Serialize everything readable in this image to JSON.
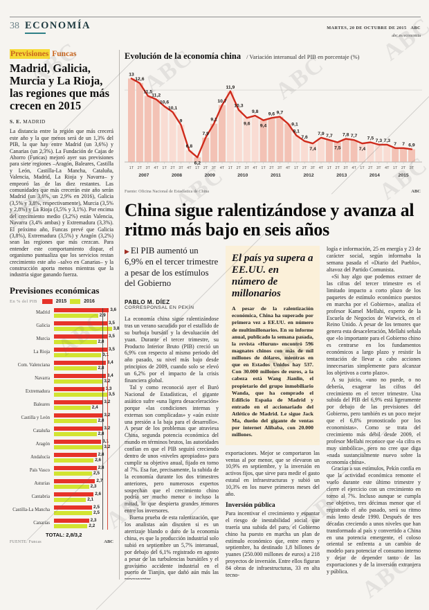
{
  "page": {
    "number": "38",
    "section": "ECONOMÍA",
    "date": "MARTES, 20 DE OCTUBRE DE 2015",
    "brand": "ABC",
    "site": "abc.es/economia",
    "watermark": "ABC"
  },
  "sidebar": {
    "kicker_hl": "Previsiones",
    "kicker_rest": " Funcas",
    "headline": "Madrid, Galicia, Murcia y La Rioja, las regiones que más crecen en 2015",
    "byline_name": "S. E.",
    "byline_city": "MADRID",
    "body": "La distancia entre la región que más crecerá este año y la que menos será de un 1,3% del PIB, la que hay entre Madrid (un 3,6%) y Canarias (un 2,3%). La Fundación de Cajas de Ahorro (Funcas) mejoró ayer sus previsiones para siete regiones –Aragón, Baleares, Castilla y León, Castilla-La Mancha, Cataluña, Valencia, Madrid, La Rioja y Navarra– y empeoró las de las diez restantes. Las comunidades que más crecerán este año serán Madrid (un 3,6%, un 2,9% en 2016), Galicia (3,5% y 3,8%, respectivamente), Murcia (3,5% y 2,8%) y La Rioja (3,5% y 3,1%). Por encima del crecimiento medio (3,2%) están Valencia, Navarra (3,4% ambas) y Extremadura (3,3%). El próximo año, Funcas prevé que Galicia (3,8%), Extremadura (3,5%) y Aragón (3,2%) sean las regiones que más crezcan. Para entender este comportamiento dispar, el organismo puntualiza que los servicios restan crecimiento este año –salvo en Canarias– y la construcción aporta menos mientras que la industria sigue ganando fuerza."
  },
  "main": {
    "headline": "China sigue ralentizándose y avanza al ritmo más bajo en seis años",
    "subhead": "El PIB aumentó un 6,9% en el tercer trimestre a pesar de los estímulos del Gobierno",
    "byline_name": "PABLO M. DÍEZ",
    "byline_role": "CORRESPONSAL EN PEKÍN",
    "col1": [
      "La economía china sigue ralentizándose tras un verano sacudido por el estallido de su burbuja bursátil y la devaluación del yuan. Durante el tercer trimestre, su Producto Interior Bruto (PIB) creció un 6,9% con respecto al mismo periodo del año pasado, su nivel más bajo desde principios de 2009, cuando solo se elevó un 6,2% por el impacto de la crisis financiera global.",
      "Tal y como reconoció ayer el Buró Nacional de Estadísticas, el gigante asiático sufre «una ligera desaceleración» porque «las condiciones internas y externas son complicadas» y «aún existe una presión a la baja para el desarrollo». A pesar de los problemas que atraviesa China, segunda potencia económica del mundo en términos brutos, las autoridades confían en que el PIB seguirá creciendo dentro de unos «niveles apropiados» para cumplir su objetivo anual, fijado en torno al 7%. Esa fue, precisamente, la subida de la economía durante los dos trimestres anteriores, pero numerosos expertos sospechan que el crecimiento chino podría ser mucho menor o incluso la mitad, lo que despierta grandes temores entre los inversores.",
      "Buena prueba de esta ralentización, que los analistas aún discuten si es un aterrizaje blando o duro de la economía china, es que la producción industrial solo subió en septiembre un 5,7% interanual, por debajo del 6,1% registrado en agosto a pesar de las turbulencias bursátiles y el gravísimo accidente industrial en el puerto de Tianjin, que dañó aún más las renqueantes"
    ],
    "box": {
      "title": "El país ya supera a EE.UU. en número de millonarios",
      "body": "A pesar de la ralentización económica, China ha superado por primera vez a EE.UU. en número de multimillonarios. En su informe anual, publicado la semana pasada, la revista «Hurun» encontró 596 magnates chinos con más de mil millones de dólares, mientras en que en Estados Unidos hay 537. Con 30.000 millones de euros, a la cabeza está Wang Jianlin, el propietario del grupo inmobiliario Wanda, que ha comprado el Edificio España de Madrid y entrado en el accionariado del Atlético de Madrid. Le sigue Jack Ma, dueño del gigante de ventas por internet Alibaba, con 20.000 millones."
    },
    "col2_after_box": "exportaciones. Mejor se comportaron las ventas al por menor, que se elevaron un 10,9% en septiembre, y la inversión en activos fijos, que sirve para medir el gasto estatal en infraestructuras y subió un 10,3% en los nueve primeros meses del año.",
    "subheading2": "Inversión pública",
    "col2_p2": "Para incentivar el crecimiento y espantar el riesgo de inestabilidad social que traería una subida del paro, el Gobierno chino ha puesto en marcha un plan de estímulo económico que, entre enero y septiembre, ha destinado 1,8 billones de yuanes (250.000 millones de euros) a 218 proyectos de inversión. Entre ellos figuran 84 obras de infraestructuras, 33 en alta tecno-",
    "col3": [
      "logía e información, 25 en energía y 23 de carácter social, según informaba la semana pasada el «Diario del Pueblo», altavoz del Partido Comunista.",
      "«Si hay algo que podemos extraer de las cifras del tercer trimestre es el limitado impacto a corto plazo de los paquetes de estímulo económico puestos en marcha por el Gobierno», analiza el profesor Kamel Mellahi, experto de la Escuela de Negocios de Warwick, en el Reino Unido. A pesar de los temores que genera esta desaceleración, Mellahi señala que «lo importante para el Gobierno chino es centrarse en los fundamentos económicos a largo plazo y resistir la tentación de llevar a cabo acciones innecesarias simplemente para alcanzar los objetivos a corto plazo».",
      "A su juicio, «uno no puede, o no debería, exagerar las cifras del crecimiento en el tercer trimestre. Una subida del PIB del 6,9% está ligeramente por debajo de las previsiones del Gobierno, pero también es un poco mejor que el 6,8% pronosticado por los economistas». Como se trata del crecimiento más débil desde 2009, el profesor Mellahi reconoce que «la cifra es muy simbólica», pero no cree que diga «nada sustancialmente nuevo sobre la economía china».",
      "Gracias a sus estímulos, Pekín confía en que la actividad económica remonte el vuelo durante este último trimestre y cierre el ejercicio con un crecimiento en torno al 7%. Incluso aunque se cumpla ese objetivo, tres décimas menor que el registrado el año pasado, será su ritmo más lento desde 1990. Después de tres décadas creciendo a unos niveles que han transformado al país y convertido a China en una potencia emergente, el coloso oriental se enfrenta a un cambio de modelo para potenciar el consumo interno y dejar de depender tanto de las exportaciones y de la inversión extranjera y pública."
    ]
  },
  "chart_data": [
    {
      "type": "line",
      "title": "Evolución de la economía china",
      "subtitle": "/ Variación interanual del PIB en porcentaje (%)",
      "x_years": [
        "2007",
        "2008",
        "2009",
        "2010",
        "2011",
        "2012",
        "2013",
        "2014",
        "2015"
      ],
      "quarter_labels": [
        "1T",
        "2T",
        "3T",
        "4T"
      ],
      "values": [
        13,
        12.6,
        11.5,
        11.2,
        10.6,
        10.1,
        9,
        6.8,
        6.2,
        7.9,
        9.1,
        10.7,
        11.9,
        10.3,
        9.6,
        9.8,
        9.4,
        9.6,
        9.7,
        9.1,
        8.1,
        7.6,
        7.4,
        7.9,
        7.7,
        7.5,
        7.8,
        7.7,
        7.4,
        7.5,
        7.3,
        7.3,
        7,
        7,
        6.9
      ],
      "label_dir": [
        "u",
        "u",
        "u",
        "u",
        "u",
        "u",
        "u",
        "u",
        "d",
        "u",
        "u",
        "u",
        "u",
        "u",
        "d",
        "u",
        "d",
        "u",
        "u",
        "r",
        "u",
        "u",
        "d",
        "u",
        "u",
        "d",
        "u",
        "u",
        "d",
        "u",
        "u",
        "u",
        "u",
        "u",
        "u"
      ],
      "ylim": [
        5.8,
        13.2
      ],
      "gridline": 12,
      "line_color": "#cf2a1b",
      "band_colors": [
        "#f3c2b5",
        "#f9dcd3"
      ],
      "source": "Fuente: Oficina Nacional de Estadística de China",
      "credit": "ABC"
    },
    {
      "type": "bar",
      "title": "Previsiones económicas",
      "unit_label": "En % del PIB",
      "categories": [
        "Madrid",
        "Galicia",
        "Murcia",
        "La Rioja",
        "Com. Valenciana",
        "Navarra",
        "Extremadura",
        "Baleares",
        "Castilla y León",
        "Cataluña",
        "Aragón",
        "Andalucía",
        "País Vasco",
        "Asturias",
        "Cantabria",
        "Castilla-La Mancha",
        "Canarias"
      ],
      "series": [
        {
          "name": "2015",
          "color": "#e63329",
          "values": [
            3.6,
            3.5,
            3.5,
            3.5,
            3.4,
            3.4,
            3.3,
            3.2,
            3.2,
            3.2,
            3.1,
            2.8,
            2.8,
            2.7,
            2.6,
            2.5,
            2.3
          ]
        },
        {
          "name": "2016",
          "color": "#d2e431",
          "values": [
            2.9,
            3.8,
            2.8,
            3.1,
            2.8,
            3.2,
            3.5,
            2.4,
            2.8,
            2.8,
            3.2,
            2.6,
            2.5,
            2.3,
            2.1,
            2.5,
            2.2
          ]
        }
      ],
      "xmax": 4,
      "ref_lines": [
        {
          "value": 3.2,
          "color": "#3a3a3a"
        },
        {
          "value": 3.5,
          "color": "#cf2a1b"
        }
      ],
      "total_label": "TOTAL:",
      "total_value": "2,8/3,2",
      "source": "FUENTE: Funcas",
      "credit": "ABC"
    }
  ]
}
